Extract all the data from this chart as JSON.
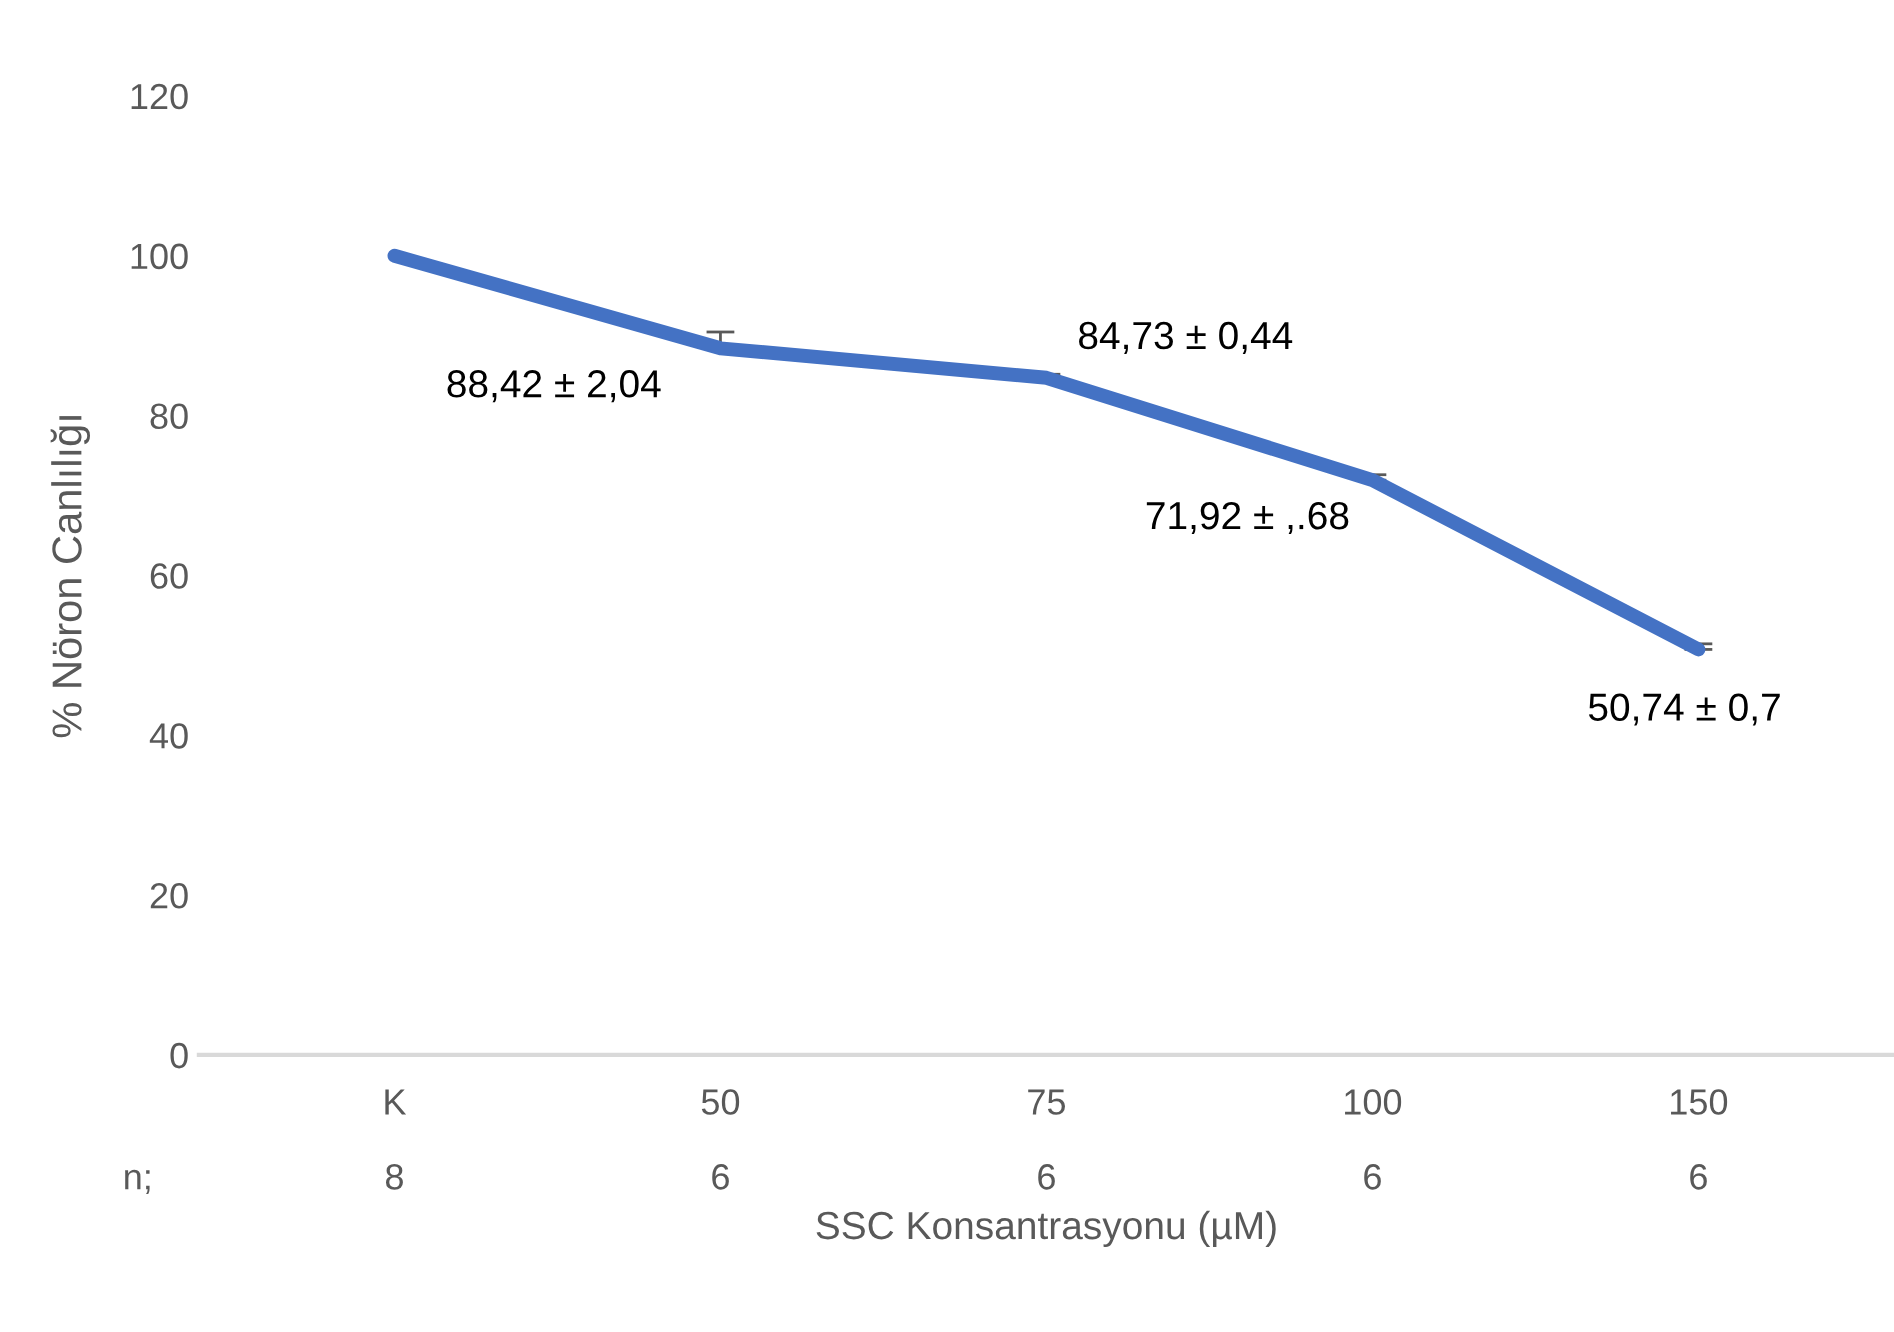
{
  "chart_data": {
    "type": "line",
    "ylabel": "% Nöron Canlılığı",
    "xlabel": "SSC Konsantrasyonu (µM)",
    "categories": [
      "K",
      "50",
      "75",
      "100",
      "150"
    ],
    "series": [
      {
        "color": "#4472c4",
        "values": [
          100,
          88.42,
          84.73,
          71.92,
          50.74
        ],
        "errors": [
          null,
          [
            88.42,
            90.46
          ],
          [
            84.73,
            85.17
          ],
          [
            71.92,
            72.6
          ],
          [
            50.74,
            51.44
          ]
        ],
        "value_labels": [
          null,
          "88,42 ± 2,04",
          "84,73 ± 0,44",
          "71,92 ± ,.68",
          "50,74 ± 0,7"
        ]
      }
    ],
    "ylim": [
      0,
      120
    ],
    "yticks": [
      0,
      20,
      40,
      60,
      80,
      100,
      120
    ],
    "grid": false,
    "marker": "none",
    "line_style": "solid",
    "annotations": [
      "n;",
      "8",
      "6",
      "6",
      "6",
      "6"
    ]
  }
}
